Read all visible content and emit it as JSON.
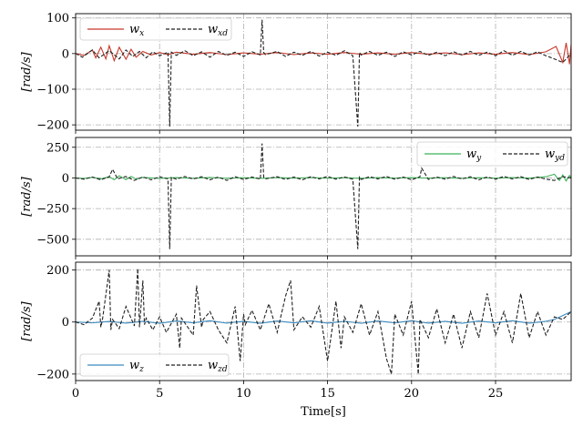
{
  "chart_data": [
    {
      "type": "line",
      "ylabel": "[rad/s]",
      "ylim": [
        -215,
        112
      ],
      "yticks": [
        100,
        0,
        -100,
        -200
      ],
      "xlim": [
        0,
        29.5
      ],
      "xticks": [
        0,
        5,
        10,
        15,
        20,
        25
      ],
      "grid": true,
      "legend_position": "upper-left",
      "series": [
        {
          "name": "w_x",
          "label_base": "w",
          "label_sub": "x",
          "color": "#c8382a",
          "style": "solid",
          "x": [
            0,
            0.5,
            1,
            1.2,
            1.5,
            1.8,
            2,
            2.3,
            2.6,
            3,
            3.3,
            3.6,
            4,
            4.5,
            5,
            5.5,
            6,
            7,
            8,
            9,
            10,
            11,
            12,
            13,
            14,
            15,
            16,
            17,
            18,
            19,
            20,
            21,
            22,
            23,
            24,
            25,
            26,
            27,
            28,
            28.6,
            29,
            29.2,
            29.4,
            29.5
          ],
          "y": [
            0,
            -5,
            10,
            -12,
            18,
            -15,
            22,
            -20,
            18,
            -16,
            12,
            -10,
            6,
            -4,
            3,
            -3,
            4,
            -2,
            3,
            -3,
            2,
            -2,
            3,
            -3,
            2,
            -2,
            3,
            -2,
            2,
            -2,
            3,
            -2,
            2,
            -3,
            2,
            -2,
            3,
            -3,
            5,
            20,
            -25,
            30,
            -30,
            25
          ]
        },
        {
          "name": "w_xd",
          "label_base": "w",
          "label_sub": "xd",
          "color": "#222222",
          "style": "dashed",
          "x": [
            0,
            0.4,
            1,
            1.4,
            2,
            2.6,
            3,
            3.4,
            3.8,
            4.2,
            4.6,
            5,
            5.5,
            5.6,
            5.7,
            6,
            6.5,
            7,
            7.5,
            8,
            8.5,
            9,
            9.5,
            10,
            10.5,
            11,
            11.1,
            11.2,
            11.3,
            12,
            12.5,
            13,
            13.5,
            14,
            14.5,
            15,
            15.5,
            16,
            16.5,
            16.8,
            16.9,
            17,
            17.5,
            18,
            18.5,
            19,
            19.5,
            20,
            20.5,
            21,
            21.5,
            22,
            22.5,
            23,
            23.5,
            24,
            24.5,
            25,
            25.5,
            26,
            26.5,
            27,
            27.5,
            28,
            28.5,
            29,
            29.5
          ],
          "y": [
            0,
            -10,
            10,
            -12,
            8,
            -15,
            10,
            -8,
            6,
            -12,
            5,
            -6,
            4,
            -205,
            4,
            -5,
            8,
            -6,
            5,
            -10,
            6,
            -5,
            4,
            -8,
            5,
            -4,
            95,
            3,
            -3,
            6,
            -8,
            4,
            -5,
            6,
            -7,
            4,
            -5,
            8,
            -6,
            -205,
            3,
            -4,
            6,
            -5,
            4,
            -8,
            5,
            -4,
            6,
            -5,
            4,
            -6,
            5,
            -4,
            6,
            -5,
            4,
            -6,
            8,
            -5,
            6,
            -4,
            5,
            -6,
            -15,
            -25,
            0
          ]
        }
      ]
    },
    {
      "type": "line",
      "ylabel": "[rad/s]",
      "ylim": [
        -635,
        330
      ],
      "yticks": [
        250,
        0,
        -250,
        -500
      ],
      "xlim": [
        0,
        29.5
      ],
      "xticks": [
        0,
        5,
        10,
        15,
        20,
        25
      ],
      "grid": true,
      "legend_position": "upper-right",
      "series": [
        {
          "name": "w_y",
          "label_base": "w",
          "label_sub": "y",
          "color": "#3fb35a",
          "style": "solid",
          "x": [
            0,
            0.5,
            1,
            1.5,
            2,
            2.3,
            2.6,
            3,
            3.3,
            3.6,
            4,
            5,
            6,
            7,
            8,
            9,
            10,
            11,
            12,
            13,
            14,
            15,
            16,
            17,
            18,
            19,
            20,
            21,
            22,
            23,
            24,
            25,
            26,
            27,
            28,
            28.5,
            28.8,
            29,
            29.2,
            29.4,
            29.5
          ],
          "y": [
            0,
            -5,
            5,
            -8,
            10,
            -15,
            18,
            -14,
            12,
            -10,
            5,
            -4,
            3,
            -3,
            4,
            -3,
            2,
            -3,
            3,
            -2,
            3,
            -2,
            2,
            -3,
            3,
            -2,
            3,
            -2,
            2,
            -3,
            2,
            -2,
            3,
            -2,
            10,
            30,
            -20,
            25,
            -25,
            20,
            0
          ]
        },
        {
          "name": "w_yd",
          "label_base": "w",
          "label_sub": "yd",
          "color": "#222222",
          "style": "dashed",
          "x": [
            0,
            0.5,
            1,
            1.5,
            2,
            2.2,
            2.5,
            3,
            3.5,
            4,
            4.5,
            5,
            5.5,
            5.6,
            5.7,
            6,
            6.5,
            7,
            7.5,
            8,
            8.5,
            9,
            9.5,
            10,
            10.5,
            11,
            11.1,
            11.2,
            11.3,
            12,
            12.5,
            13,
            13.5,
            14,
            14.5,
            15,
            15.5,
            16,
            16.5,
            16.8,
            16.9,
            17,
            17.5,
            18,
            18.5,
            19,
            19.5,
            20,
            20.5,
            20.6,
            21,
            21.5,
            22,
            22.5,
            23,
            23.5,
            24,
            24.5,
            25,
            25.5,
            26,
            26.5,
            27,
            27.5,
            28,
            28.5,
            29,
            29.5
          ],
          "y": [
            0,
            -10,
            8,
            -15,
            10,
            70,
            -8,
            12,
            -20,
            8,
            -15,
            10,
            -8,
            -580,
            5,
            -10,
            12,
            -8,
            10,
            -15,
            8,
            -20,
            10,
            -12,
            8,
            -10,
            280,
            5,
            -8,
            10,
            -12,
            8,
            -15,
            10,
            -8,
            12,
            -10,
            8,
            -10,
            -580,
            6,
            -12,
            10,
            -8,
            12,
            -10,
            8,
            -15,
            10,
            80,
            -12,
            8,
            -10,
            12,
            -8,
            10,
            -15,
            8,
            -10,
            12,
            -8,
            10,
            -12,
            8,
            -10,
            -20,
            10,
            0
          ]
        }
      ]
    },
    {
      "type": "line",
      "ylabel": "[rad/s]",
      "ylim": [
        -225,
        230
      ],
      "yticks": [
        200,
        0,
        -200
      ],
      "xlim": [
        0,
        29.5
      ],
      "xticks": [
        0,
        5,
        10,
        15,
        20,
        25
      ],
      "xlabel": "Time[s]",
      "grid": true,
      "legend_position": "lower-left",
      "series": [
        {
          "name": "w_z",
          "label_base": "w",
          "label_sub": "z",
          "color": "#3a8bbf",
          "style": "solid",
          "x": [
            0,
            1,
            2,
            3,
            4,
            5,
            6,
            7,
            8,
            9,
            10,
            11,
            12,
            13,
            14,
            15,
            16,
            17,
            18,
            19,
            20,
            21,
            22,
            23,
            24,
            25,
            26,
            27,
            28,
            28.5,
            29,
            29.5
          ],
          "y": [
            0,
            -3,
            2,
            -4,
            3,
            -5,
            4,
            -3,
            5,
            -4,
            3,
            -5,
            4,
            -3,
            5,
            -4,
            3,
            -5,
            4,
            -3,
            5,
            -4,
            3,
            -5,
            4,
            -3,
            5,
            -4,
            3,
            10,
            25,
            40
          ]
        },
        {
          "name": "w_zd",
          "label_base": "w",
          "label_sub": "zd",
          "color": "#222222",
          "style": "dashed",
          "x": [
            0,
            0.5,
            1,
            1.4,
            1.5,
            1.6,
            2,
            2.1,
            2.2,
            2.6,
            3,
            3.5,
            3.7,
            3.8,
            4,
            4.1,
            4.2,
            4.6,
            5,
            5.4,
            6,
            6.2,
            6.3,
            7,
            7.2,
            7.5,
            7.6,
            8,
            8.5,
            9,
            9.5,
            9.8,
            10,
            10.1,
            10.5,
            11,
            11.5,
            12,
            12.5,
            12.8,
            13,
            13.5,
            14,
            14.5,
            15,
            15.5,
            15.8,
            16,
            16.5,
            17,
            17.5,
            18,
            18.5,
            18.8,
            19,
            19.5,
            20,
            20.4,
            20.5,
            21,
            21.5,
            22,
            22.5,
            23,
            23.5,
            24,
            24.5,
            25,
            25.5,
            26,
            26.5,
            27,
            27.5,
            28,
            28.5,
            29,
            29.5
          ],
          "y": [
            0,
            -10,
            15,
            80,
            -20,
            10,
            200,
            -30,
            10,
            -25,
            60,
            -15,
            205,
            -20,
            160,
            -10,
            15,
            -30,
            20,
            -40,
            30,
            -100,
            15,
            -50,
            140,
            -20,
            10,
            40,
            -30,
            -80,
            60,
            -150,
            30,
            -10,
            45,
            -30,
            70,
            -40,
            100,
            160,
            -30,
            20,
            -20,
            60,
            -150,
            80,
            -100,
            20,
            -40,
            70,
            -50,
            40,
            -140,
            -200,
            30,
            -50,
            80,
            -200,
            10,
            -60,
            50,
            -80,
            30,
            -100,
            40,
            -60,
            110,
            -50,
            40,
            -80,
            110,
            -60,
            40,
            -50,
            20,
            10,
            40
          ]
        }
      ]
    }
  ]
}
